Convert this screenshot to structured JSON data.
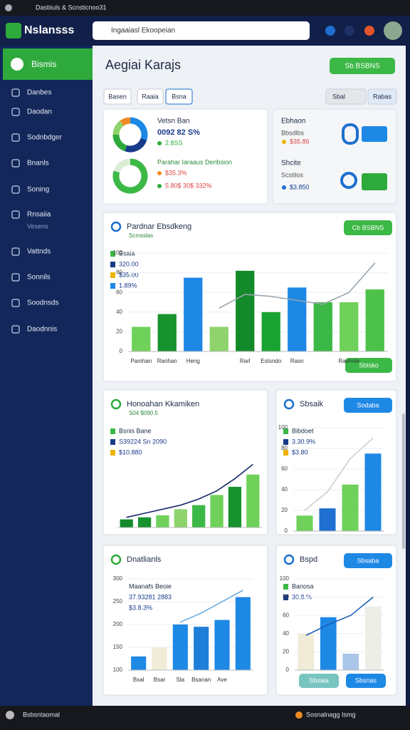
{
  "browser": {
    "tab": "Dasbiuls & Scnsticnoo31"
  },
  "header": {
    "logo": "Nslansss",
    "search": "Ingaaiasl Ekoopeian"
  },
  "sidebar": {
    "active": "Bismis",
    "items": [
      "Danbes",
      "Daodan",
      "Sodnbdger",
      "Bnanls",
      "Soning",
      "Rnsaiia",
      "Vattnds",
      "Sonnils",
      "Soodnsds",
      "Daodnnis"
    ],
    "sub": "Vesens"
  },
  "page": {
    "title": "Aegiai Karajs",
    "button": "Sb BSBNS",
    "tabs": [
      "Basen",
      "Raaia",
      "Bsna"
    ],
    "tools": [
      "Sbal",
      "Rabas"
    ]
  },
  "summary": {
    "title": "Vetsn Ban",
    "value": "0092 82 S%",
    "change": "2.8SS",
    "subtitle": "Parahar Iaraaus Deribsion",
    "stat1": "$35.3%",
    "stat2": "5.80$ 30$ 332%",
    "donuts": [
      {
        "type": "pie",
        "values": [
          30,
          25,
          20,
          15,
          10
        ],
        "colors": [
          "#1e88e5",
          "#173a8a",
          "#2eaa3c",
          "#8ed36b",
          "#f08a24"
        ]
      },
      {
        "type": "pie",
        "values": [
          80,
          20
        ],
        "colors": [
          "#3cb846",
          "#d9eed5"
        ]
      }
    ]
  },
  "side_summary": {
    "rows": [
      {
        "title": "Ebhaon",
        "sub": "Bbsdlbs",
        "value": "$35.86"
      },
      {
        "title": "Shcite",
        "sub": "Scstilos",
        "value": "$3.850"
      }
    ]
  },
  "cards": [
    {
      "title": "Pardnar Ebsdkeng",
      "subtitle": "Scmsslas",
      "button": "Cb BSBNS",
      "footer": "Sbtsko",
      "notes": [
        "Bsaia",
        "320.00",
        "$35.00",
        "1.89%"
      ],
      "chart": {
        "type": "bar",
        "categories": [
          "Pamhan",
          "Ranhan",
          "Heng",
          null,
          "Rarl",
          "Estsndo",
          "Rasn",
          null,
          "Raehnle",
          null
        ],
        "values": [
          25,
          38,
          75,
          25,
          82,
          40,
          65,
          50,
          50,
          63
        ],
        "colors": [
          "#6fd15a",
          "#16922e",
          "#1e88e5",
          "#8ed36b",
          "#138a2a",
          "#1aa332",
          "#1e88e5",
          "#3cb846",
          "#6fd15a",
          "#4cc24a"
        ],
        "line_values": [
          null,
          null,
          null,
          44,
          58,
          56,
          52,
          48,
          60,
          90
        ],
        "line_color": "#9aa4ae",
        "ylim": [
          0,
          100
        ],
        "yticks": [
          0,
          20,
          40,
          60,
          80,
          100
        ]
      }
    },
    {
      "title": "Honoahan Kkamiken",
      "subtitle": "S04 $090.5",
      "notes": [
        "Bsnis Bane",
        "S39224 Sn 2090",
        "$10.880"
      ],
      "chart": {
        "type": "bar",
        "categories": [
          null,
          null,
          null,
          null,
          null,
          null,
          null,
          null
        ],
        "values": [
          8,
          10,
          12,
          18,
          22,
          32,
          40,
          52
        ],
        "colors": [
          "#138a2a",
          "#16922e",
          "#6fd15a",
          "#8ed36b",
          "#3cb846",
          "#6fd15a",
          "#16922e",
          "#6fd15a"
        ],
        "line_values": [
          10,
          14,
          18,
          22,
          28,
          36,
          48,
          62
        ],
        "line_color": "#172a6b",
        "ylim": [
          0,
          70
        ]
      }
    },
    {
      "title": "Sbsaik",
      "button": "Sodaba",
      "notes": [
        "Bibdoet",
        "3.30.9%",
        "$3.80"
      ],
      "chart": {
        "type": "bar",
        "categories": [
          null,
          null,
          null,
          null
        ],
        "values": [
          15,
          22,
          45,
          75
        ],
        "colors": [
          "#6fd15a",
          "#1e6fd0",
          "#6fd15a",
          "#1e88e5"
        ],
        "line_values": [
          20,
          38,
          70,
          90
        ],
        "line_color": "#c9d0d6",
        "ylim": [
          0,
          100
        ],
        "yticks": [
          0,
          20,
          40,
          60,
          80,
          100
        ]
      }
    },
    {
      "title": "Dnatlianls",
      "notes": [
        "Maanafs Beoie",
        "37.93281 2883",
        "$3.8.3%"
      ],
      "chart": {
        "type": "bar",
        "categories": [
          "Bsal",
          "Bsar",
          "Sla",
          "Bsanan",
          "Ave",
          null
        ],
        "values": [
          130,
          150,
          200,
          195,
          210,
          260
        ],
        "colors": [
          "#1e88e5",
          "#f1ecd8",
          "#1e88e5",
          "#1e7fd8",
          "#1e88e5",
          "#1e88e5"
        ],
        "line_values": [
          null,
          null,
          205,
          225,
          250,
          275
        ],
        "line_color": "#6fb1e6",
        "ylim": [
          100,
          300
        ],
        "yticks": [
          100,
          150,
          200,
          250,
          300
        ]
      }
    },
    {
      "title": "Bspd",
      "button": "Sbsaba",
      "footer_buttons": [
        "Sbsaia",
        "Sbsnas"
      ],
      "notes": [
        "Banosa",
        "30.8.%"
      ],
      "chart": {
        "type": "bar",
        "categories": [
          null,
          null,
          null,
          null
        ],
        "values": [
          40,
          58,
          18,
          70
        ],
        "colors": [
          "#f1ecd8",
          "#1e88e5",
          "#a9c6e8",
          "#eeeee8"
        ],
        "line_values": [
          38,
          50,
          60,
          80
        ],
        "line_color": "#1b5fb5",
        "ylim": [
          0,
          100
        ],
        "yticks": [
          0,
          20,
          40,
          60,
          80,
          100
        ]
      }
    }
  ],
  "footer": {
    "left": "Bsbsntaomal",
    "right": "Sosnalnagg Ismg"
  }
}
